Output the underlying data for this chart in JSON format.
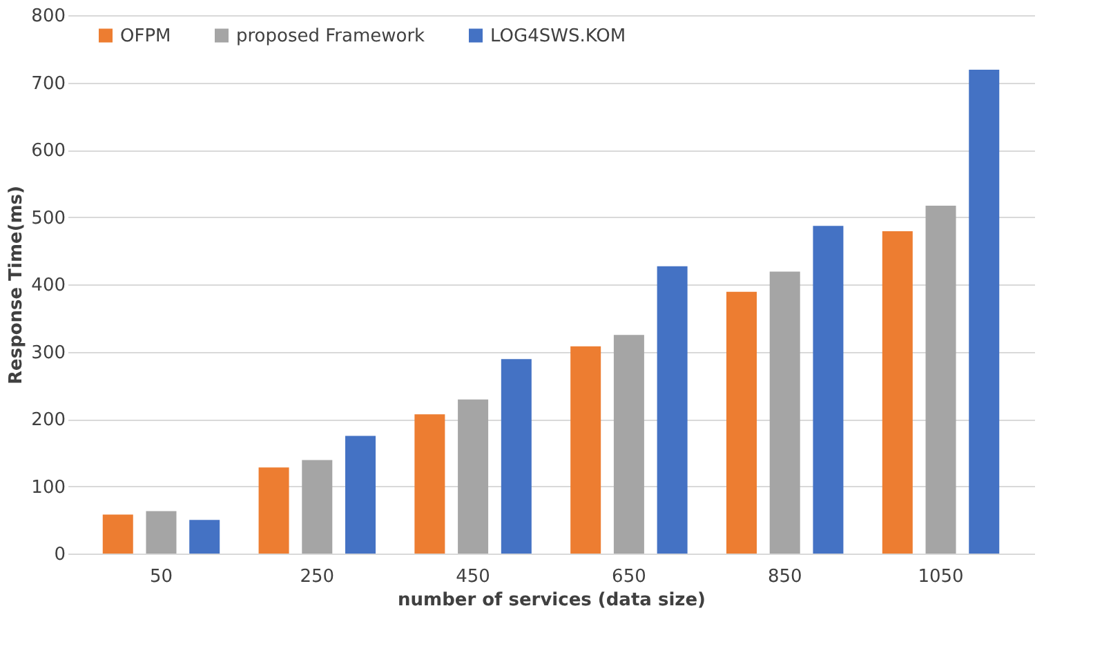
{
  "chart_data": {
    "type": "bar",
    "xlabel": "number of services (data size)",
    "ylabel": "Response Time(ms)",
    "categories": [
      "50",
      "250",
      "450",
      "650",
      "850",
      "1050"
    ],
    "series": [
      {
        "name": "OFPM",
        "color": "#ed7d31",
        "values": [
          58,
          128,
          207,
          308,
          389,
          479
        ]
      },
      {
        "name": "proposed Framework",
        "color": "#a5a5a5",
        "values": [
          63,
          139,
          229,
          325,
          419,
          517
        ]
      },
      {
        "name": "LOG4SWS.KOM",
        "color": "#4472c4",
        "values": [
          50,
          175,
          289,
          427,
          487,
          719
        ]
      }
    ],
    "ylim": [
      0,
      800
    ],
    "yticks": [
      0,
      100,
      200,
      300,
      400,
      500,
      600,
      700,
      800
    ],
    "grid": "y",
    "legend": "top"
  }
}
